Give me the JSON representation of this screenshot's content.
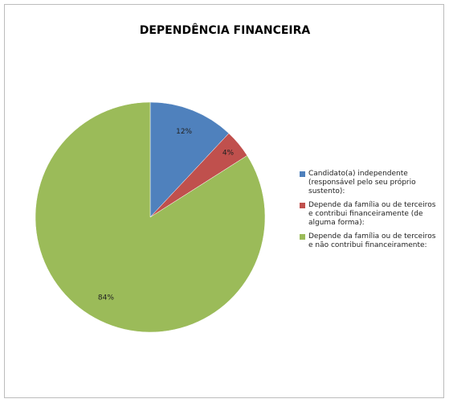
{
  "chart_data": {
    "type": "pie",
    "title": "DEPENDÊNCIA FINANCEIRA",
    "categories": [
      "Candidato(a) independente (responsável pelo seu próprio sustento):",
      "Depende da família ou de terceiros e contribui financeiramente (de alguma forma):",
      "Depende da família ou de terceiros e não contribui financeiramente:"
    ],
    "values": [
      12,
      4,
      84
    ],
    "value_labels": [
      "12%",
      "4%",
      "84%"
    ],
    "colors": [
      "#4f81bd",
      "#c0504d",
      "#9bbb59"
    ],
    "legend": "right"
  }
}
